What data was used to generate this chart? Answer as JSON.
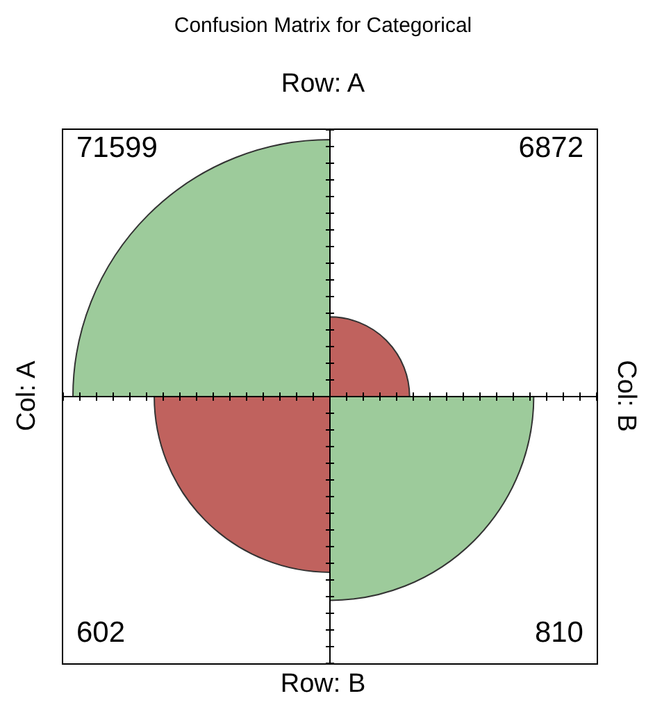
{
  "chart_data": {
    "type": "other",
    "title": "Confusion Matrix for Categorical",
    "values": [
      71599,
      6872,
      602,
      810
    ],
    "colors": [
      "#9dcb9b",
      "#c0625e",
      "#c0625e",
      "#9dcb9b"
    ],
    "data_labels": true,
    "annotations": [
      "Row: A",
      "Row: B",
      "Col: A",
      "Col: B"
    ]
  }
}
